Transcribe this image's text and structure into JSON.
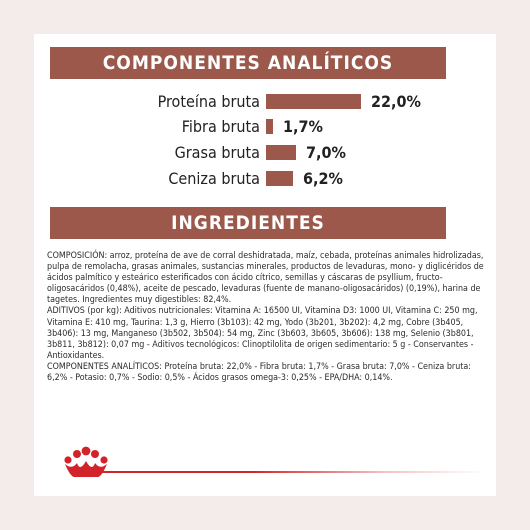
{
  "analytics": {
    "title": "COMPONENTES ANALÍTICOS",
    "rows": [
      {
        "label": "Proteína bruta",
        "value": "22,0%",
        "fraction": 0.22
      },
      {
        "label": "Fibra bruta",
        "value": "1,7%",
        "fraction": 0.017
      },
      {
        "label": "Grasa bruta",
        "value": "7,0%",
        "fraction": 0.07
      },
      {
        "label": "Ceniza bruta",
        "value": "6,2%",
        "fraction": 0.062
      }
    ]
  },
  "ingredients": {
    "title": "INGREDIENTES",
    "paragraphs": [
      "COMPOSICIÓN: arroz, proteína de ave de corral deshidratada, maíz, cebada, proteínas animales hidrolizadas, pulpa de remolacha, grasas animales, sustancias minerales, productos de levaduras, mono- y diglicéridos de ácidos palmítico y esteárico esterificados con ácido cítrico, semillas y cáscaras de psyllium, fructo-oligosacáridos (0,48%), aceite de pescado, levaduras (fuente de manano-oligosacáridos) (0,19%), harina de tagetes. Ingredientes muy digestibles: 82,4%.",
      "ADITIVOS (por kg): Aditivos nutricionales: Vitamina A: 16500 UI, Vitamina D3: 1000 UI, Vitamina C: 250 mg, Vitamina E: 410 mg, Taurina: 1,3 g, Hierro (3b103): 42 mg, Yodo (3b201, 3b202): 4,2 mg, Cobre (3b405, 3b406): 13 mg, Manganeso (3b502, 3b504): 54 mg, Zinc (3b603, 3b605, 3b606): 138 mg, Selenio (3b801, 3b811, 3b812): 0,07 mg - Aditivos tecnológicos: Clinoptilolita de origen sedimentario: 5 g - Conservantes - Antioxidantes.",
      "COMPONENTES ANALÍTICOS: Proteína bruta: 22,0% - Fibra bruta: 1,7% - Grasa bruta: 7,0% - Ceniza bruta: 6,2% - Potasio: 0,7% - Sodio: 0,5% - Ácidos grasos omega-3: 0,25% - EPA/DHA: 0,14%."
    ]
  },
  "colors": {
    "accent": "#9c584a",
    "brand_red": "#d2232a",
    "background": "#f3ecea"
  },
  "logo": {
    "icon": "royal-canin-crown-icon"
  }
}
